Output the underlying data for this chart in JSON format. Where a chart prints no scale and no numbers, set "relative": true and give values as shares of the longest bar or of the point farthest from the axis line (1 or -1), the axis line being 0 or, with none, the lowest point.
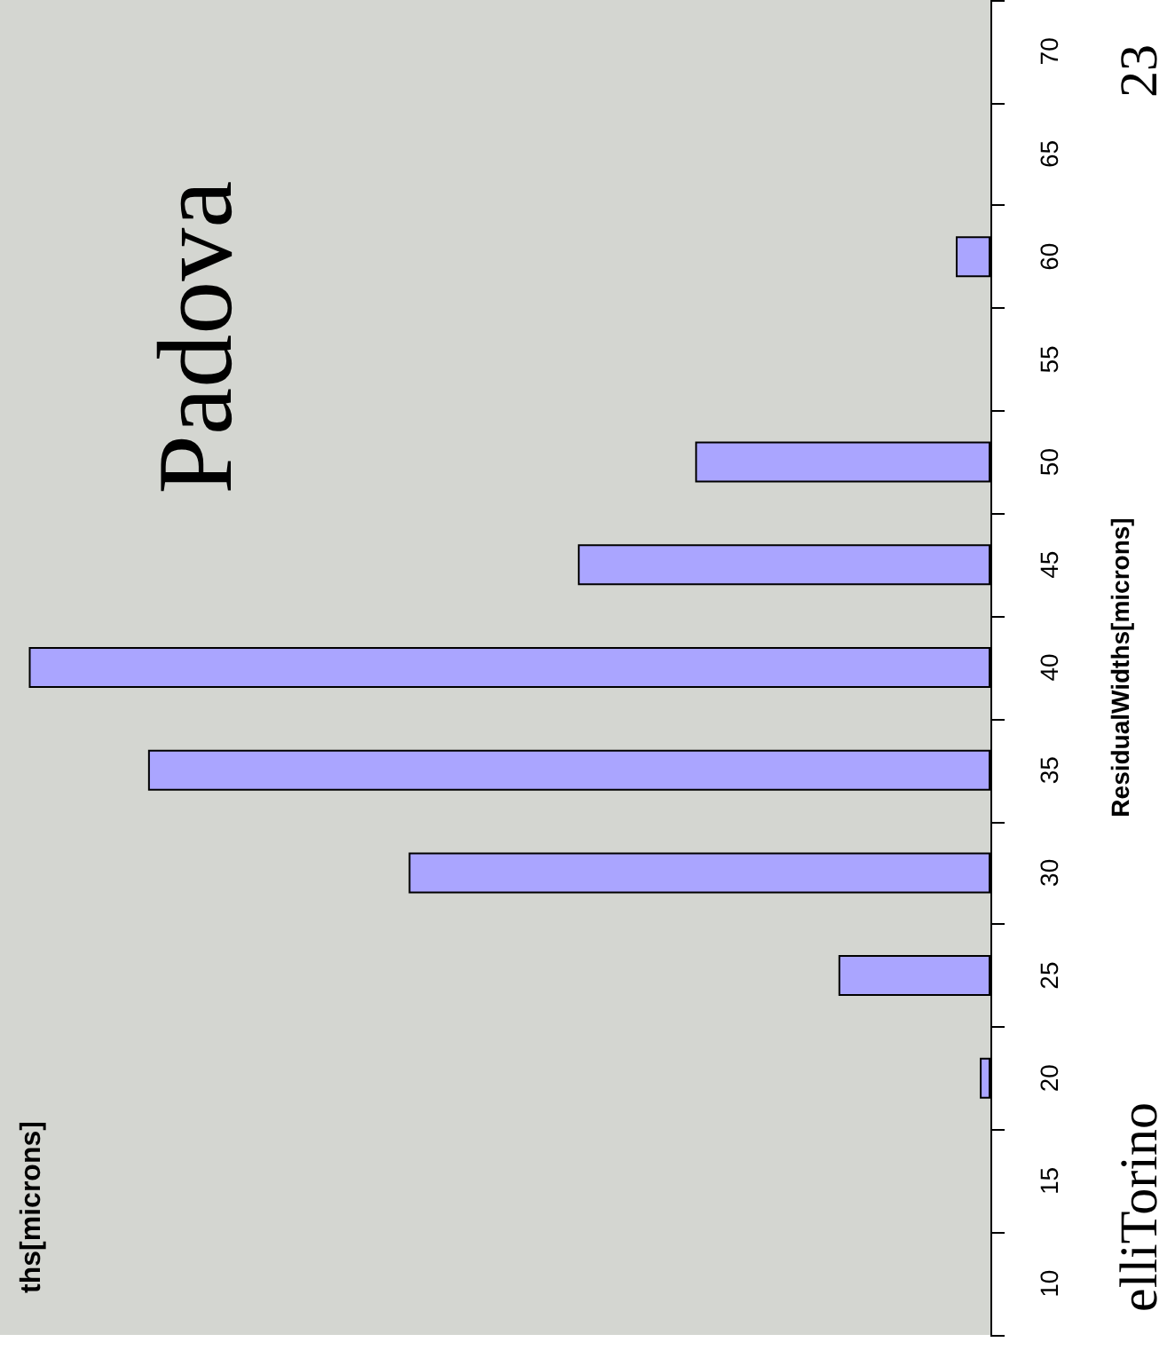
{
  "chart_data": {
    "type": "bar",
    "orientation": "horizontal",
    "relative": true,
    "categories": [
      "70",
      "65",
      "60",
      "55",
      "50",
      "45",
      "40",
      "35",
      "30",
      "25",
      "20",
      "15",
      "10"
    ],
    "values": [
      null,
      null,
      0.036,
      null,
      0.307,
      0.429,
      1,
      0.876,
      0.605,
      0.158,
      0.011,
      null,
      null
    ],
    "color": "#aaa5ff",
    "ylabel": "ResidualWidths[microns]",
    "annotations": [
      "Padova",
      "23",
      "elliTorino",
      "ths[microns]"
    ],
    "grid": false
  }
}
